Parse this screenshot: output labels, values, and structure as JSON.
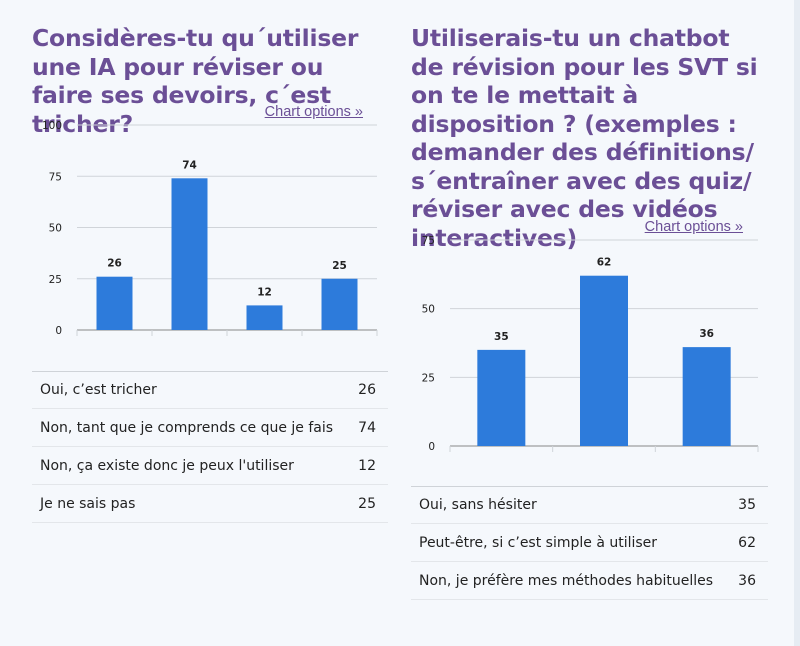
{
  "colors": {
    "title": "#6b4f96",
    "bar": "#2d7bdb",
    "grid": "#d0d4d9",
    "axis": "#888888"
  },
  "chart_options_label": "Chart options »",
  "chart_data": [
    {
      "type": "bar",
      "title": "Considères-tu qu´utiliser une IA pour réviser ou faire ses devoirs, c´est tricher?",
      "categories": [
        "Oui, c’est tricher",
        "Non, tant que je comprends ce que je fais",
        "Non, ça existe donc je peux l'utiliser",
        "Je ne sais pas"
      ],
      "values": [
        26,
        74,
        12,
        25
      ],
      "ylim": [
        0,
        100
      ],
      "yticks": [
        "0",
        "25",
        "50",
        "75",
        "100"
      ],
      "data_labels": [
        "26",
        "74",
        "12",
        "25"
      ],
      "counts": [
        "26",
        "74",
        "12",
        "25"
      ],
      "grid": true
    },
    {
      "type": "bar",
      "title": "Utiliserais-tu un chatbot de révision pour les SVT si on te le mettait à disposition ? (exemples : demander des définitions/ s´entraîner avec des quiz/ réviser avec des vidéos interactives)",
      "categories": [
        "Oui, sans hésiter",
        "Peut-être, si c’est simple à utiliser",
        "Non, je préfère mes méthodes habituelles"
      ],
      "values": [
        35,
        62,
        36
      ],
      "ylim": [
        0,
        75
      ],
      "yticks": [
        "0",
        "25",
        "50",
        "75"
      ],
      "data_labels": [
        "35",
        "62",
        "36"
      ],
      "counts": [
        "35",
        "62",
        "36"
      ],
      "grid": true
    }
  ]
}
